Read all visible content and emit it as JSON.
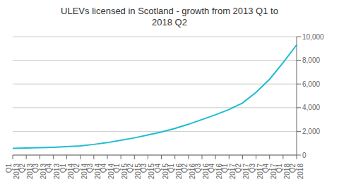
{
  "chart_data": {
    "type": "line",
    "title": "ULEVs licensed in Scotland - growth from 2013 Q1 to\n2018 Q2",
    "categories": [
      "Q1\n2013",
      "Q2\n2013",
      "Q3\n2013",
      "Q4\n2013",
      "Q1\n2014",
      "Q2\n2014",
      "Q3\n2014",
      "Q4\n2014",
      "Q1\n2015",
      "Q2\n2015",
      "Q3\n2015",
      "Q4\n2015",
      "Q1\n2016",
      "Q2\n2016",
      "Q3\n2016",
      "Q4\n2016",
      "Q1\n2017",
      "Q2\n2017",
      "Q3\n2017",
      "Q4\n2017",
      "Q1\n2018",
      "Q2\n2018"
    ],
    "values": [
      570,
      590,
      620,
      660,
      720,
      780,
      900,
      1050,
      1250,
      1450,
      1700,
      1950,
      2250,
      2600,
      3000,
      3400,
      3850,
      4400,
      5300,
      6400,
      7800,
      9300
    ],
    "color": "#1fbcd2",
    "ylim": [
      0,
      10000
    ],
    "yticks": [
      0,
      {
        "value": 2000,
        "label": "2,000"
      },
      {
        "value": 4000,
        "label": "4,000"
      },
      {
        "value": 6000,
        "label": "6,000"
      },
      {
        "value": 8000,
        "label": "8,000"
      },
      {
        "value": 10000,
        "label": "10,000"
      }
    ],
    "grid": true
  }
}
